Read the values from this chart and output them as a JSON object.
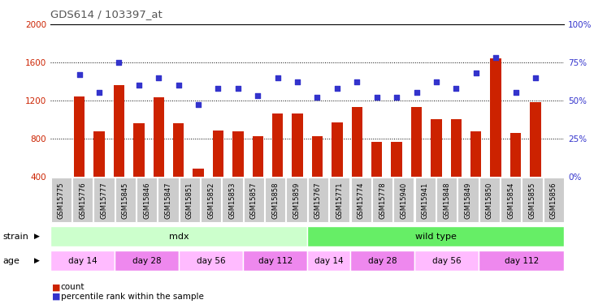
{
  "title": "GDS614 / 103397_at",
  "samples": [
    "GSM15775",
    "GSM15776",
    "GSM15777",
    "GSM15845",
    "GSM15846",
    "GSM15847",
    "GSM15851",
    "GSM15852",
    "GSM15853",
    "GSM15857",
    "GSM15858",
    "GSM15859",
    "GSM15767",
    "GSM15771",
    "GSM15774",
    "GSM15778",
    "GSM15940",
    "GSM15941",
    "GSM15848",
    "GSM15849",
    "GSM15850",
    "GSM15854",
    "GSM15855",
    "GSM15856"
  ],
  "counts": [
    1240,
    870,
    1360,
    960,
    1230,
    960,
    480,
    880,
    870,
    820,
    1060,
    1060,
    820,
    970,
    1130,
    760,
    760,
    1130,
    1000,
    1000,
    870,
    1640,
    860,
    1180
  ],
  "percentiles": [
    67,
    55,
    75,
    60,
    65,
    60,
    47,
    58,
    58,
    53,
    65,
    62,
    52,
    58,
    62,
    52,
    52,
    55,
    62,
    58,
    68,
    78,
    55,
    65
  ],
  "bar_color": "#cc2200",
  "dot_color": "#3333cc",
  "ylim_left": [
    400,
    2000
  ],
  "ylim_right": [
    0,
    100
  ],
  "yticks_left": [
    400,
    800,
    1200,
    1600,
    2000
  ],
  "yticks_right": [
    0,
    25,
    50,
    75,
    100
  ],
  "grid_values": [
    800,
    1200,
    1600
  ],
  "strain_groups": [
    {
      "label": "mdx",
      "start": 0,
      "end": 12,
      "color": "#ccffcc"
    },
    {
      "label": "wild type",
      "start": 12,
      "end": 24,
      "color": "#66ee66"
    }
  ],
  "age_groups": [
    {
      "label": "day 14",
      "start": 0,
      "end": 3,
      "color": "#ffbbff"
    },
    {
      "label": "day 28",
      "start": 3,
      "end": 6,
      "color": "#ee88ee"
    },
    {
      "label": "day 56",
      "start": 6,
      "end": 9,
      "color": "#ffbbff"
    },
    {
      "label": "day 112",
      "start": 9,
      "end": 12,
      "color": "#ee88ee"
    },
    {
      "label": "day 14",
      "start": 12,
      "end": 14,
      "color": "#ffbbff"
    },
    {
      "label": "day 28",
      "start": 14,
      "end": 17,
      "color": "#ee88ee"
    },
    {
      "label": "day 56",
      "start": 17,
      "end": 20,
      "color": "#ffbbff"
    },
    {
      "label": "day 112",
      "start": 20,
      "end": 24,
      "color": "#ee88ee"
    }
  ],
  "strain_label": "strain",
  "age_label": "age",
  "legend_count": "count",
  "legend_percentile": "percentile rank within the sample",
  "background_color": "#ffffff",
  "plot_bg_color": "#ffffff",
  "title_color": "#555555",
  "left_axis_color": "#cc2200",
  "right_axis_color": "#3333cc",
  "tick_label_bg": "#cccccc"
}
